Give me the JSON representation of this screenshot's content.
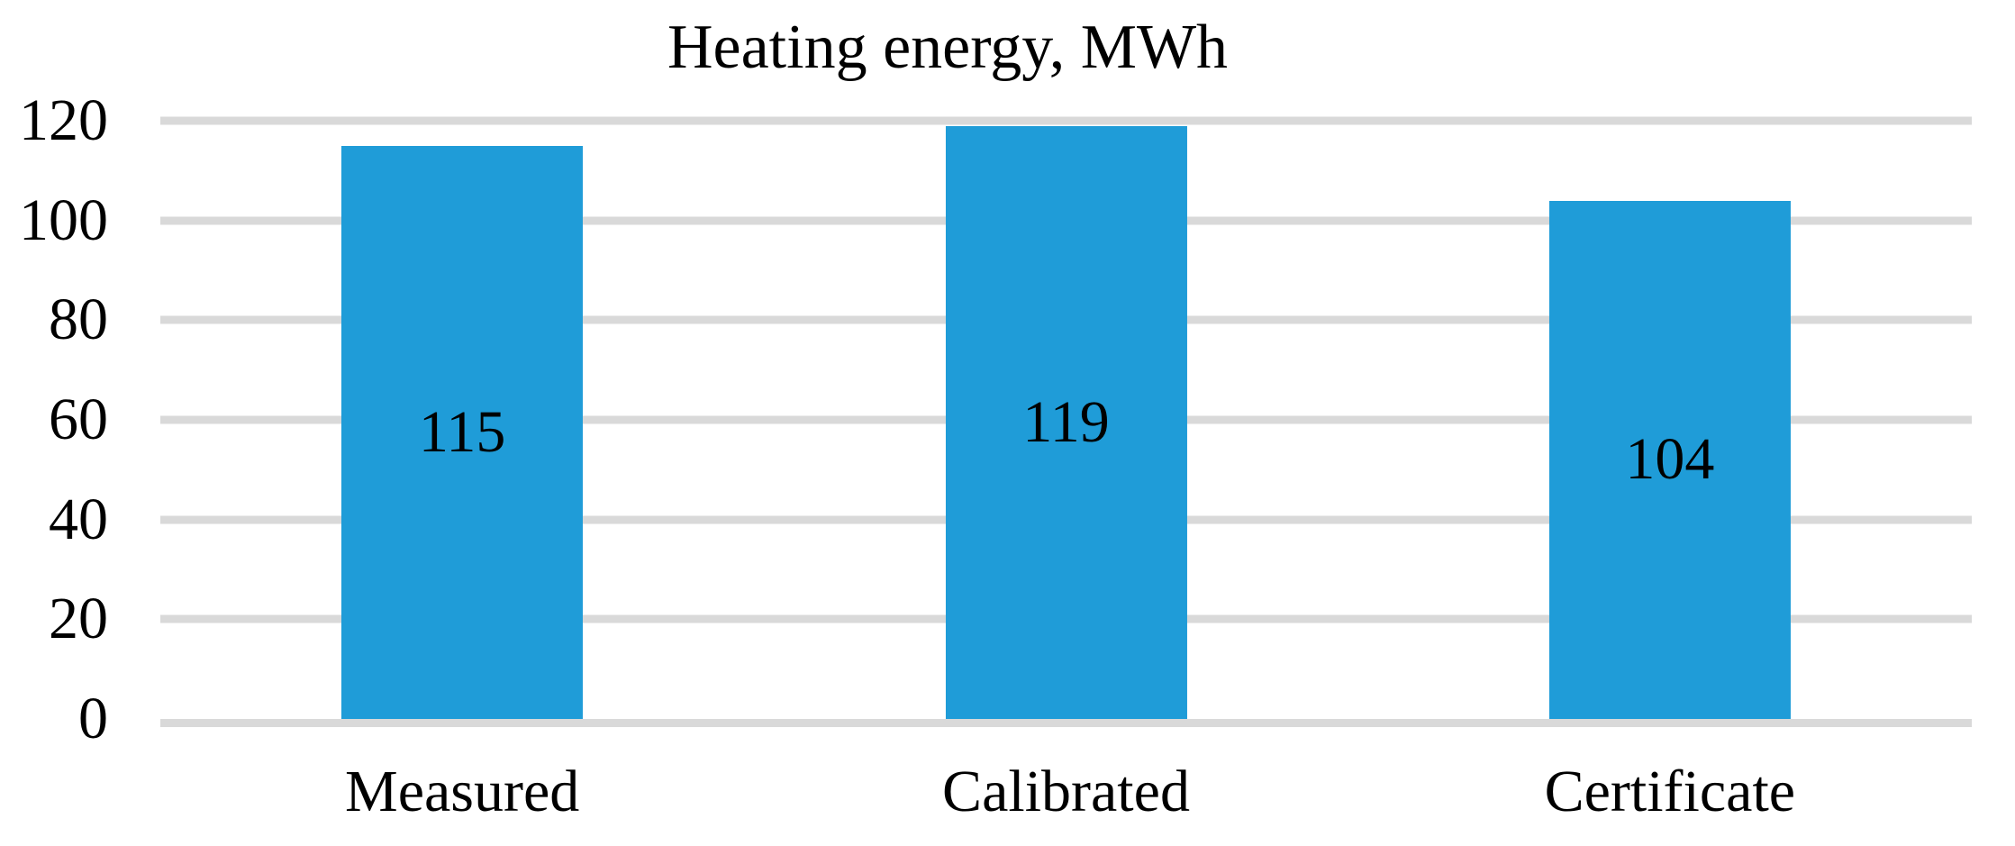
{
  "chart_data": {
    "type": "bar",
    "title": "Heating energy, MWh",
    "categories": [
      "Measured",
      "Calibrated",
      "Certificate"
    ],
    "values": [
      115,
      119,
      104
    ],
    "data_labels": [
      "115",
      "119",
      "104"
    ],
    "xlabel": "",
    "ylabel": "",
    "ylim": [
      0,
      120
    ],
    "yticks": [
      0,
      20,
      40,
      60,
      80,
      100,
      120
    ],
    "grid": true,
    "legend_position": "none",
    "bar_color": "#1F9CD8",
    "gridline_color": "#D9D9D9",
    "text_color": "#000000",
    "background_color": "#FFFFFF"
  }
}
